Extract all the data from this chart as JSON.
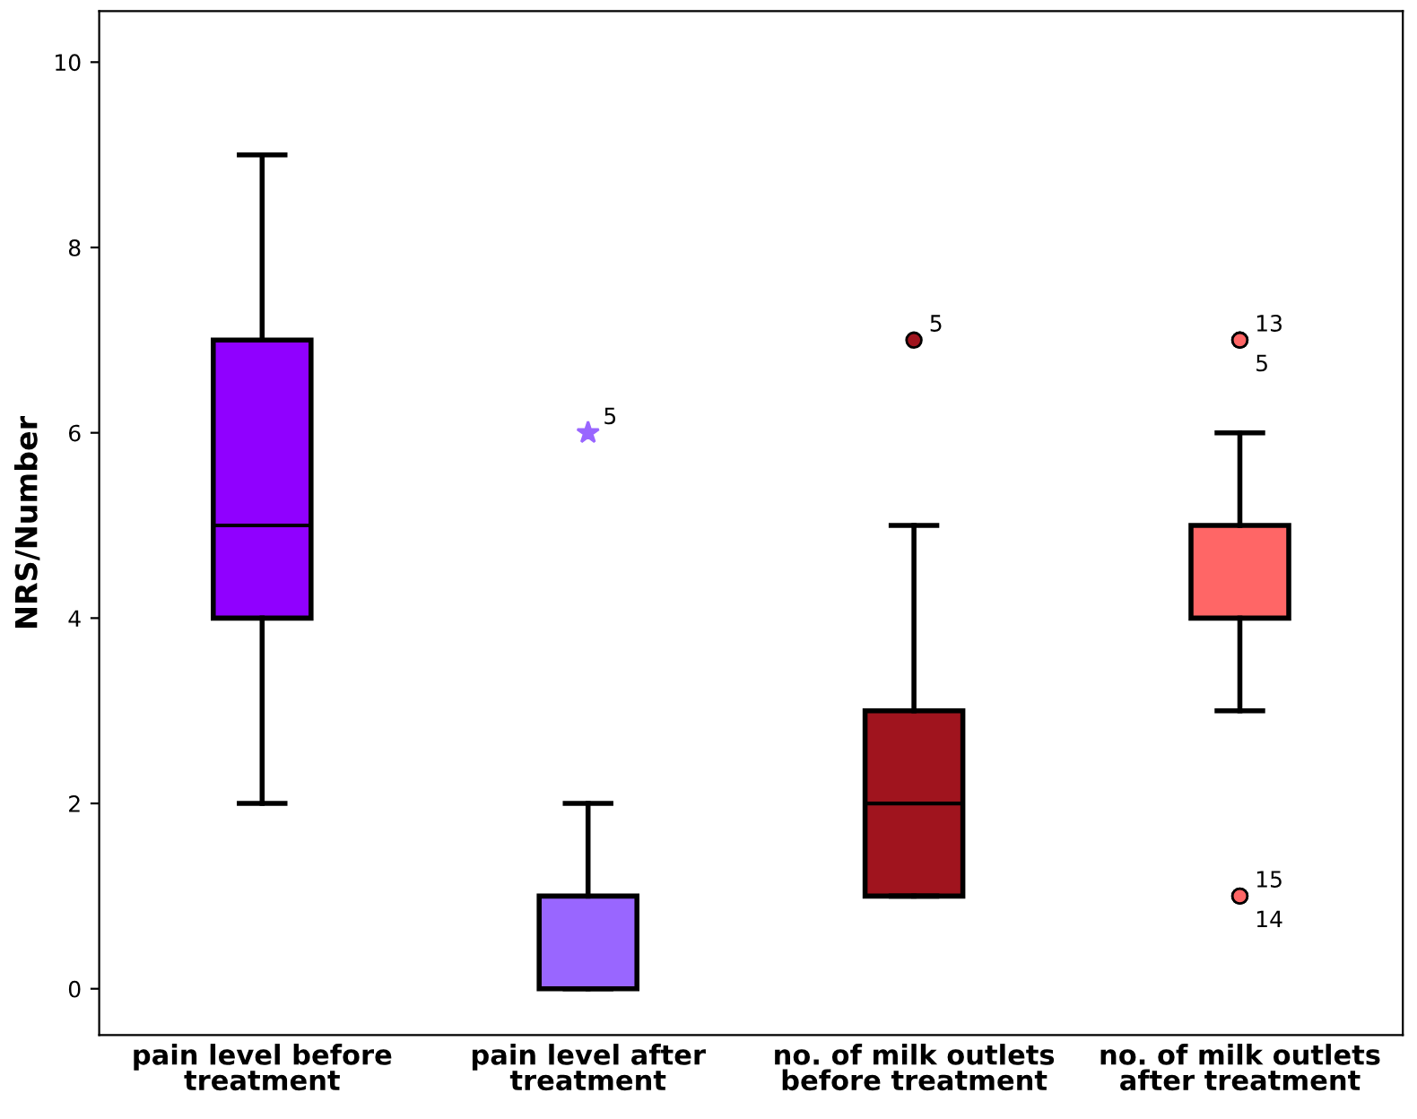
{
  "chart_data": {
    "type": "box",
    "ylabel": "NRS/Number",
    "categories": [
      "pain level before\ntreatment",
      "pain level after\ntreatment",
      "no. of milk outlets\nbefore treatment",
      "no. of milk outlets\nafter treatment"
    ],
    "series": [
      {
        "color": "#9000ff",
        "marker": "circle",
        "boxes": [
          {
            "low": 2,
            "q1": 4,
            "median": 5,
            "q3": 7,
            "high": 9
          },
          null,
          null,
          null
        ]
      },
      {
        "color": "#9966ff",
        "marker": "star",
        "boxes": [
          null,
          {
            "low": 0,
            "q1": 0,
            "median": 0,
            "q3": 1,
            "high": 2,
            "outliers": [
              6
            ]
          },
          null,
          null
        ]
      },
      {
        "color": "#a0141e",
        "marker": "circle",
        "boxes": [
          null,
          null,
          {
            "low": 1,
            "q1": 1,
            "median": 2,
            "q3": 3,
            "high": 5,
            "outliers": [
              7
            ]
          },
          null
        ]
      },
      {
        "color": "#ff6666",
        "marker": "circle",
        "boxes": [
          null,
          null,
          null,
          {
            "low": 3,
            "q1": 4,
            "median": 4,
            "q3": 5,
            "high": 6,
            "outliers": [
              7,
              7,
              1,
              1
            ]
          }
        ]
      }
    ],
    "annotations": [
      "5",
      "5",
      "13",
      "5",
      "15",
      "14"
    ],
    "ylim": [
      -0.5,
      10.55
    ],
    "yticks": [
      0,
      2,
      4,
      6,
      8,
      10
    ],
    "grid": false
  }
}
